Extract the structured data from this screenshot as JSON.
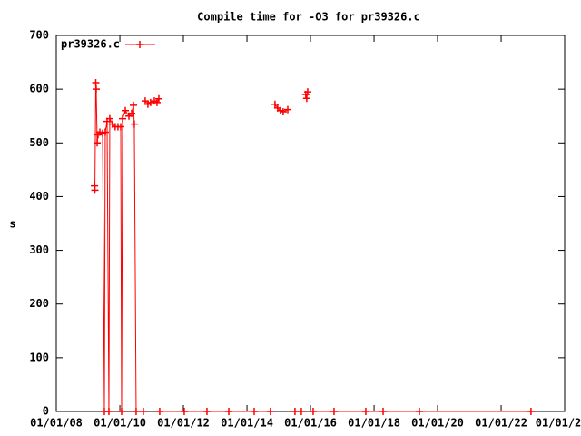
{
  "chart_data": {
    "type": "line",
    "title": "Compile time for -O3 for pr39326.c",
    "y_label": "s",
    "legend": "top-left",
    "grid": false,
    "x": [
      "2009-03-15",
      "2009-03-20",
      "2009-03-30",
      "2009-04-04",
      "2009-04-15",
      "2009-04-25",
      "2009-05-16",
      "2009-06-16",
      "2009-07-07",
      "2009-07-17",
      "2009-08-07",
      "2009-08-28",
      "2009-09-07",
      "2009-10-08",
      "2009-11-08",
      "2009-12-10",
      "2010-01-11",
      "2010-01-21",
      "2010-02-01",
      "2010-03-04",
      "2010-04-15",
      "2010-05-16",
      "2010-06-06",
      "2010-06-16",
      "2010-07-07",
      "2010-09-28",
      null,
      "2010-10-19",
      "2010-11-19",
      "2010-12-20",
      "2011-02-01",
      "2011-03-04",
      "2011-03-25",
      null,
      "2011-04-04",
      "2012-01-11",
      "2012-09-28",
      "2013-06-06",
      "2014-03-25",
      "2014-09-28",
      null,
      "2014-11-19",
      "2014-12-20",
      "2015-01-21",
      "2015-02-21",
      "2015-04-15",
      null,
      "2015-07-07",
      "2015-09-18",
      null,
      "2015-11-08",
      "2015-11-19",
      "2015-11-30",
      null,
      "2016-02-01",
      "2016-09-28",
      "2017-09-28",
      "2018-04-15",
      "2019-06-06",
      "2022-12-10"
    ],
    "series": [
      {
        "name": "pr39326.c",
        "color": "#ff0000",
        "values": [
          420,
          412,
          612,
          600,
          500,
          515,
          520,
          518,
          0,
          520,
          540,
          0,
          545,
          535,
          530,
          530,
          530,
          0,
          545,
          560,
          550,
          555,
          570,
          535,
          0,
          0,
          null,
          578,
          572,
          575,
          578,
          575,
          582,
          null,
          0,
          0,
          0,
          0,
          0,
          0,
          null,
          572,
          565,
          560,
          558,
          562,
          null,
          0,
          0,
          null,
          590,
          583,
          595,
          null,
          0,
          0,
          0,
          0,
          0,
          0
        ]
      }
    ],
    "xlim": [
      "2008-01-01",
      "2024-01-01"
    ],
    "xticks": [
      {
        "value": "2008-01-01",
        "label": "01/01/08"
      },
      {
        "value": "2010-01-01",
        "label": "01/01/10"
      },
      {
        "value": "2012-01-01",
        "label": "01/01/12"
      },
      {
        "value": "2014-01-01",
        "label": "01/01/14"
      },
      {
        "value": "2016-01-01",
        "label": "01/01/16"
      },
      {
        "value": "2018-01-01",
        "label": "01/01/18"
      },
      {
        "value": "2020-01-01",
        "label": "01/01/20"
      },
      {
        "value": "2022-01-01",
        "label": "01/01/22"
      },
      {
        "value": "2024-01-01",
        "label": "01/01/2"
      }
    ],
    "ylim": [
      0,
      700
    ],
    "yticks": [
      0,
      100,
      200,
      300,
      400,
      500,
      600,
      700
    ]
  }
}
